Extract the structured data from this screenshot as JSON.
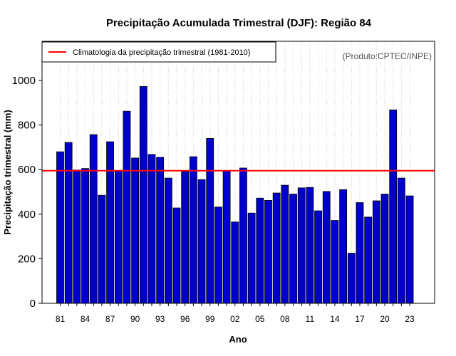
{
  "chart_data": {
    "type": "bar",
    "title": "Precipitação Acumulada Trimestral (DJF): Região 84",
    "xlabel": "Ano",
    "ylabel": "Precipitação trimestral (mm)",
    "credit": "(Produto:CPTEC/INPE)",
    "ylim": [
      0,
      1170
    ],
    "yticks": [
      0,
      200,
      400,
      600,
      800,
      1000
    ],
    "grid": "vertical-dotted",
    "legend_position": "top-left",
    "legend_label": "Climatologia da precipitação trimestral (1981-2010)",
    "climatology": 595,
    "bar_color": "#0000CD",
    "line_color": "#FF0000",
    "categories": [
      "81",
      "82",
      "83",
      "84",
      "85",
      "86",
      "87",
      "88",
      "89",
      "90",
      "91",
      "92",
      "93",
      "94",
      "95",
      "96",
      "97",
      "98",
      "99",
      "00",
      "01",
      "02",
      "03",
      "04",
      "05",
      "06",
      "07",
      "08",
      "09",
      "10",
      "11",
      "12",
      "13",
      "14",
      "15",
      "16",
      "17",
      "18",
      "19",
      "20",
      "21",
      "22",
      "23"
    ],
    "xtick_labels": [
      "81",
      "84",
      "87",
      "90",
      "93",
      "96",
      "99",
      "02",
      "05",
      "08",
      "11",
      "14",
      "17",
      "20",
      "23"
    ],
    "values": [
      680,
      722,
      598,
      605,
      757,
      485,
      725,
      595,
      862,
      652,
      973,
      668,
      655,
      562,
      428,
      592,
      658,
      555,
      740,
      432,
      595,
      365,
      607,
      405,
      472,
      462,
      495,
      530,
      490,
      518,
      520,
      415,
      502,
      372,
      510,
      225,
      452,
      387,
      460,
      490,
      868,
      562,
      482
    ]
  }
}
